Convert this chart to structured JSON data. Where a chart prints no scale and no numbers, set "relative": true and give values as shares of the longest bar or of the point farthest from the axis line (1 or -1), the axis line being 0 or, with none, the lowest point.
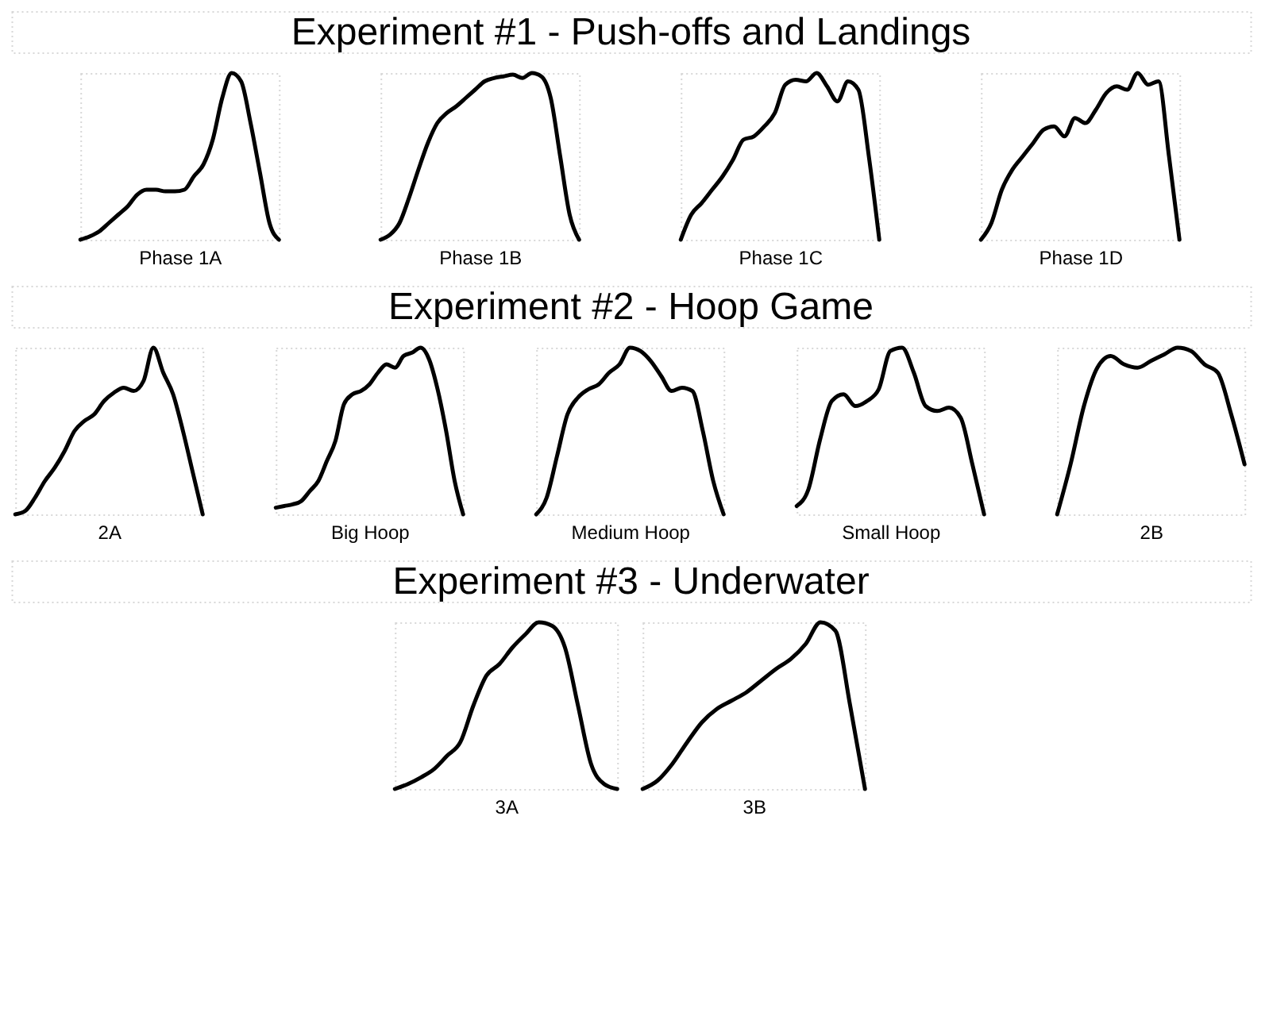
{
  "chart_data": [
    {
      "type": "other",
      "title": "Experiment #1 - Push-offs and Landings"
    },
    {
      "type": "line",
      "xlabel": "Phase 1A",
      "relative": true,
      "categories": [
        null,
        null,
        null,
        null,
        null,
        null,
        null,
        null,
        null,
        null,
        null,
        null,
        null,
        null,
        null,
        null,
        null,
        null,
        null,
        null,
        null,
        null
      ],
      "series": [
        {
          "color": "#000000",
          "values": [
            0,
            0.02,
            0.05,
            0.1,
            0.15,
            0.2,
            0.27,
            0.3,
            0.3,
            0.29,
            0.29,
            0.3,
            0.38,
            0.45,
            0.6,
            0.85,
            1,
            0.95,
            0.7,
            0.4,
            0.1,
            0
          ]
        }
      ]
    },
    {
      "type": "line",
      "xlabel": "Phase 1B",
      "relative": true,
      "categories": [
        null,
        null,
        null,
        null,
        null,
        null,
        null,
        null,
        null,
        null,
        null,
        null,
        null,
        null,
        null,
        null,
        null,
        null,
        null,
        null,
        null,
        null
      ],
      "series": [
        {
          "color": "#000000",
          "values": [
            0,
            0.03,
            0.1,
            0.25,
            0.42,
            0.58,
            0.7,
            0.76,
            0.8,
            0.85,
            0.9,
            0.95,
            0.97,
            0.98,
            0.99,
            0.97,
            1,
            0.98,
            0.85,
            0.5,
            0.15,
            0
          ]
        }
      ]
    },
    {
      "type": "line",
      "xlabel": "Phase 1C",
      "relative": true,
      "categories": [
        null,
        null,
        null,
        null,
        null,
        null,
        null,
        null,
        null,
        null,
        null,
        null,
        null,
        null,
        null,
        null,
        null,
        null,
        null,
        null
      ],
      "series": [
        {
          "color": "#000000",
          "values": [
            0,
            0.15,
            0.22,
            0.3,
            0.38,
            0.48,
            0.6,
            0.62,
            0.68,
            0.76,
            0.93,
            0.96,
            0.95,
            1,
            0.92,
            0.83,
            0.95,
            0.9,
            0.5,
            0
          ]
        }
      ]
    },
    {
      "type": "line",
      "xlabel": "Phase 1D",
      "relative": true,
      "categories": [
        null,
        null,
        null,
        null,
        null,
        null,
        null,
        null,
        null,
        null,
        null,
        null,
        null,
        null,
        null,
        null,
        null,
        null,
        null,
        null
      ],
      "series": [
        {
          "color": "#000000",
          "values": [
            0,
            0.1,
            0.3,
            0.42,
            0.5,
            0.58,
            0.66,
            0.68,
            0.62,
            0.73,
            0.7,
            0.78,
            0.88,
            0.92,
            0.9,
            1,
            0.93,
            0.95,
            0.5,
            0
          ]
        }
      ]
    },
    {
      "type": "other",
      "title": "Experiment #2 - Hoop Game"
    },
    {
      "type": "line",
      "xlabel": "2A",
      "relative": true,
      "categories": [
        null,
        null,
        null,
        null,
        null,
        null,
        null,
        null,
        null,
        null,
        null,
        null,
        null,
        null,
        null,
        null,
        null,
        null,
        null,
        null
      ],
      "series": [
        {
          "color": "#000000",
          "values": [
            0,
            0.02,
            0.1,
            0.2,
            0.28,
            0.38,
            0.5,
            0.56,
            0.6,
            0.68,
            0.73,
            0.76,
            0.74,
            0.8,
            1,
            0.85,
            0.72,
            0.5,
            0.25,
            0
          ]
        }
      ]
    },
    {
      "type": "line",
      "xlabel": "Big Hoop",
      "relative": true,
      "categories": [
        null,
        null,
        null,
        null,
        null,
        null,
        null,
        null,
        null,
        null,
        null,
        null,
        null,
        null,
        null,
        null,
        null,
        null,
        null,
        null,
        null,
        null,
        null
      ],
      "series": [
        {
          "color": "#000000",
          "values": [
            0.04,
            0.05,
            0.06,
            0.08,
            0.14,
            0.2,
            0.32,
            0.44,
            0.66,
            0.72,
            0.74,
            0.78,
            0.85,
            0.9,
            0.88,
            0.95,
            0.97,
            1,
            0.93,
            0.75,
            0.5,
            0.2,
            0
          ]
        }
      ]
    },
    {
      "type": "line",
      "xlabel": "Medium Hoop",
      "relative": true,
      "categories": [
        null,
        null,
        null,
        null,
        null,
        null,
        null,
        null,
        null,
        null,
        null,
        null,
        null,
        null,
        null,
        null,
        null,
        null,
        null
      ],
      "series": [
        {
          "color": "#000000",
          "values": [
            0,
            0.1,
            0.35,
            0.6,
            0.7,
            0.75,
            0.78,
            0.85,
            0.9,
            1,
            0.98,
            0.92,
            0.83,
            0.74,
            0.76,
            0.74,
            0.5,
            0.2,
            0
          ]
        }
      ]
    },
    {
      "type": "line",
      "xlabel": "Small Hoop",
      "relative": true,
      "categories": [
        null,
        null,
        null,
        null,
        null,
        null,
        null,
        null,
        null,
        null,
        null,
        null,
        null,
        null,
        null,
        null,
        null
      ],
      "series": [
        {
          "color": "#000000",
          "values": [
            0.05,
            0.15,
            0.45,
            0.68,
            0.72,
            0.65,
            0.68,
            0.75,
            0.98,
            1,
            0.85,
            0.65,
            0.62,
            0.64,
            0.58,
            0.3,
            0
          ]
        }
      ]
    },
    {
      "type": "line",
      "xlabel": "2B",
      "relative": true,
      "categories": [
        null,
        null,
        null,
        null,
        null,
        null,
        null,
        null,
        null,
        null,
        null,
        null,
        null,
        null,
        null
      ],
      "series": [
        {
          "color": "#000000",
          "values": [
            0,
            0.3,
            0.65,
            0.88,
            0.95,
            0.9,
            0.88,
            0.92,
            0.96,
            1,
            0.98,
            0.9,
            0.85,
            0.6,
            0.3
          ]
        }
      ]
    },
    {
      "type": "other",
      "title": "Experiment #3 - Underwater"
    },
    {
      "type": "line",
      "xlabel": "3A",
      "relative": true,
      "categories": [
        null,
        null,
        null,
        null,
        null,
        null,
        null,
        null,
        null,
        null,
        null,
        null,
        null,
        null,
        null,
        null,
        null,
        null
      ],
      "series": [
        {
          "color": "#000000",
          "values": [
            0,
            0.03,
            0.07,
            0.12,
            0.2,
            0.28,
            0.5,
            0.68,
            0.75,
            0.85,
            0.93,
            1,
            0.98,
            0.85,
            0.5,
            0.15,
            0.03,
            0
          ]
        }
      ]
    },
    {
      "type": "line",
      "xlabel": "3B",
      "relative": true,
      "categories": [
        null,
        null,
        null,
        null,
        null,
        null,
        null,
        null,
        null,
        null,
        null,
        null,
        null,
        null,
        null,
        null
      ],
      "series": [
        {
          "color": "#000000",
          "values": [
            0,
            0.05,
            0.15,
            0.28,
            0.4,
            0.48,
            0.53,
            0.58,
            0.65,
            0.72,
            0.78,
            0.87,
            1,
            0.95,
            0.5,
            0
          ]
        }
      ]
    }
  ]
}
